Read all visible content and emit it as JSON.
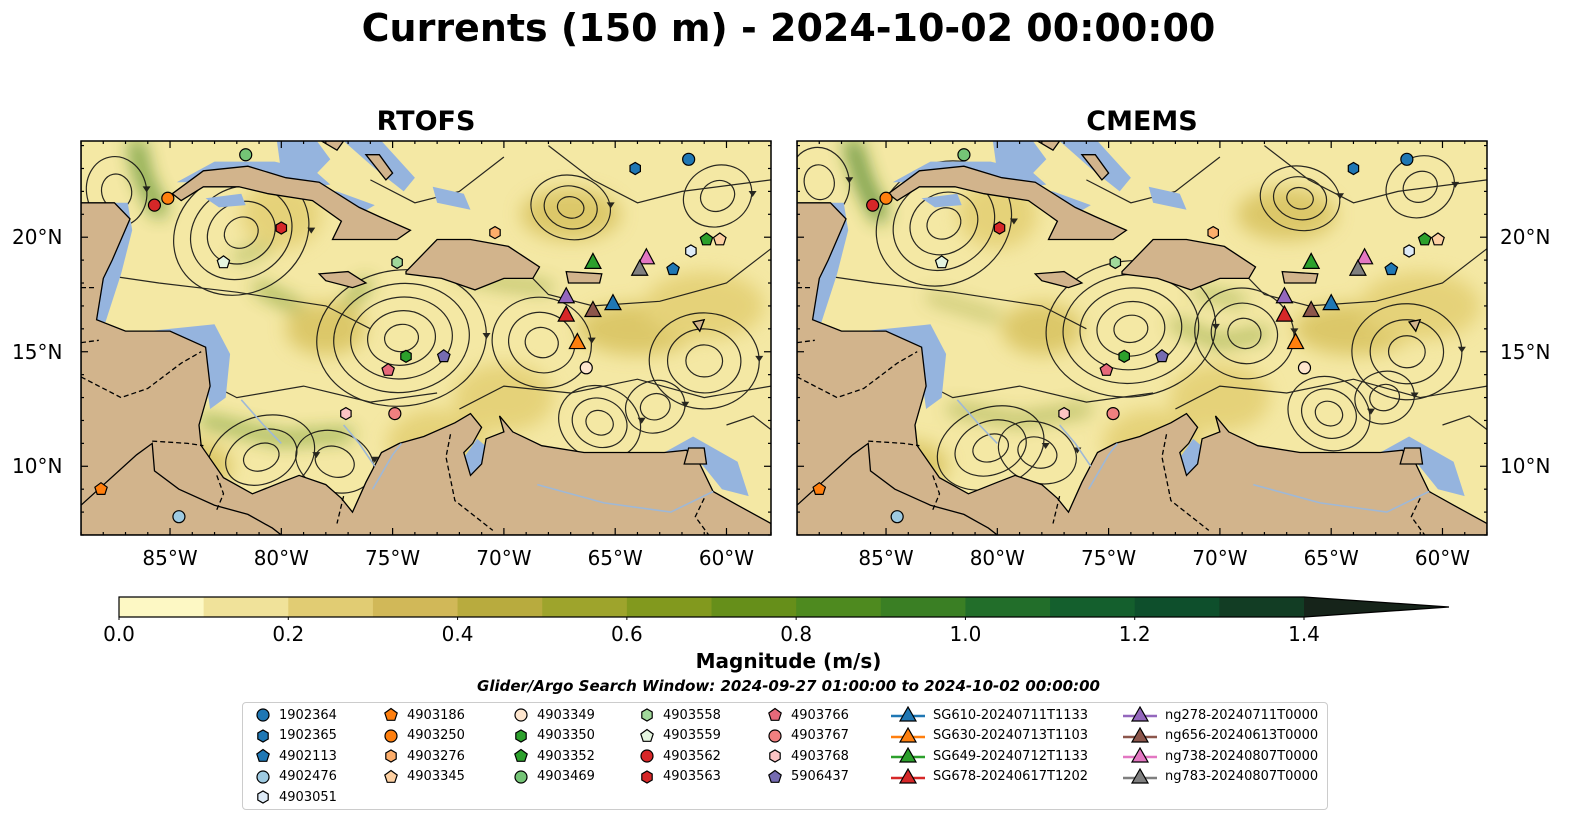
{
  "suptitle": "Currents (150 m) - 2024-10-02 00:00:00",
  "panels": [
    {
      "title": "RTOFS"
    },
    {
      "title": "CMEMS"
    }
  ],
  "axes": {
    "lat_ticks": [
      "20°N",
      "15°N",
      "10°N"
    ],
    "lon_ticks": [
      "85°W",
      "80°W",
      "75°W",
      "70°W",
      "65°W",
      "60°W"
    ]
  },
  "colorbar": {
    "label": "Magnitude (m/s)",
    "ticks": [
      "0.0",
      "0.2",
      "0.4",
      "0.6",
      "0.8",
      "1.0",
      "1.2",
      "1.4"
    ],
    "colors": [
      "#fdf8c4",
      "#f0e29a",
      "#e1cc73",
      "#d1b858",
      "#b8ab3e",
      "#9ea42c",
      "#82991e",
      "#668f1a",
      "#4e8a1f",
      "#3a7f24",
      "#226e2a",
      "#145f2d",
      "#0e4f2c",
      "#123d24",
      "#17301c",
      "#16241a"
    ]
  },
  "search_window": "Glider/Argo Search Window: 2024-09-27 01:00:00 to 2024-10-02 00:00:00",
  "chart_data": {
    "type": "scatter",
    "title": "Currents (150 m) - 2024-10-02 00:00:00",
    "panels": [
      "RTOFS",
      "CMEMS"
    ],
    "xlim": [
      -89,
      -58
    ],
    "ylim": [
      7,
      24.2
    ],
    "colorbar": {
      "label": "Magnitude (m/s)",
      "range": [
        0,
        1.5
      ]
    },
    "series": [
      {
        "name": "1902364",
        "marker": "circle",
        "color": "#1f77b4",
        "points": [
          [
            -61.7,
            23.4
          ]
        ]
      },
      {
        "name": "1902365",
        "marker": "hexagon",
        "color": "#1f77b4",
        "points": [
          [
            -64.1,
            23.0
          ]
        ]
      },
      {
        "name": "4902113",
        "marker": "pentagon",
        "color": "#1f77b4",
        "points": [
          [
            -62.4,
            18.6
          ]
        ]
      },
      {
        "name": "4902476",
        "marker": "circle",
        "color": "#9ecae1",
        "points": [
          [
            -84.6,
            7.8
          ]
        ]
      },
      {
        "name": "4903051",
        "marker": "hexagon",
        "color": "#deebf7",
        "points": [
          [
            -61.6,
            19.4
          ]
        ]
      },
      {
        "name": "4903186",
        "marker": "pentagon",
        "color": "#ff7f0e",
        "points": [
          [
            -88.1,
            9.0
          ]
        ]
      },
      {
        "name": "4903250",
        "marker": "circle",
        "color": "#ff7f0e",
        "points": [
          [
            -85.1,
            21.7
          ]
        ]
      },
      {
        "name": "4903276",
        "marker": "hexagon",
        "color": "#fdae6b",
        "points": [
          [
            -70.4,
            20.2
          ]
        ]
      },
      {
        "name": "4903345",
        "marker": "pentagon",
        "color": "#fdd0a2",
        "points": [
          [
            -60.3,
            19.9
          ]
        ]
      },
      {
        "name": "4903349",
        "marker": "circle",
        "color": "#fee6ce",
        "points": [
          [
            -66.3,
            14.3
          ]
        ]
      },
      {
        "name": "4903350",
        "marker": "hexagon",
        "color": "#2ca02c",
        "points": [
          [
            -74.4,
            14.8
          ]
        ]
      },
      {
        "name": "4903352",
        "marker": "pentagon",
        "color": "#2ca02c",
        "points": [
          [
            -60.9,
            19.9
          ]
        ]
      },
      {
        "name": "4903469",
        "marker": "circle",
        "color": "#74c476",
        "points": [
          [
            -81.6,
            23.6
          ]
        ]
      },
      {
        "name": "4903558",
        "marker": "hexagon",
        "color": "#a1d99b",
        "points": [
          [
            -74.8,
            18.9
          ]
        ]
      },
      {
        "name": "4903559",
        "marker": "pentagon",
        "color": "#e5f5e0",
        "points": [
          [
            -82.6,
            18.9
          ]
        ]
      },
      {
        "name": "4903562",
        "marker": "circle",
        "color": "#d62728",
        "points": [
          [
            -85.7,
            21.4
          ]
        ]
      },
      {
        "name": "4903563",
        "marker": "hexagon",
        "color": "#d62728",
        "points": [
          [
            -80.0,
            20.4
          ]
        ]
      },
      {
        "name": "4903766",
        "marker": "pentagon",
        "color": "#e7697a",
        "points": [
          [
            -75.2,
            14.2
          ]
        ]
      },
      {
        "name": "4903767",
        "marker": "circle",
        "color": "#f08080",
        "points": [
          [
            -74.9,
            12.3
          ]
        ]
      },
      {
        "name": "4903768",
        "marker": "hexagon",
        "color": "#fbc4c4",
        "points": [
          [
            -77.1,
            12.3
          ]
        ]
      },
      {
        "name": "5906437",
        "marker": "pentagon",
        "color": "#756bb1",
        "points": [
          [
            -72.7,
            14.8
          ]
        ]
      },
      {
        "name": "SG610-20240711T1133",
        "marker": "triangle",
        "color": "#1f77b4",
        "points": [
          [
            -65.1,
            17.1
          ]
        ]
      },
      {
        "name": "SG630-20240713T1103",
        "marker": "triangle",
        "color": "#ff7f0e",
        "points": [
          [
            -66.7,
            15.4
          ]
        ]
      },
      {
        "name": "SG649-20240712T1133",
        "marker": "triangle",
        "color": "#2ca02c",
        "points": [
          [
            -66.0,
            18.9
          ]
        ]
      },
      {
        "name": "SG678-20240617T1202",
        "marker": "triangle",
        "color": "#d62728",
        "points": [
          [
            -67.2,
            16.6
          ]
        ]
      },
      {
        "name": "ng278-20240711T0000",
        "marker": "triangle",
        "color": "#9467bd",
        "points": [
          [
            -67.2,
            17.4
          ]
        ]
      },
      {
        "name": "ng656-20240613T0000",
        "marker": "triangle",
        "color": "#8c564b",
        "points": [
          [
            -66.0,
            16.8
          ]
        ]
      },
      {
        "name": "ng738-20240807T0000",
        "marker": "triangle",
        "color": "#e377c2",
        "points": [
          [
            -63.6,
            19.1
          ]
        ]
      },
      {
        "name": "ng783-20240807T0000",
        "marker": "triangle",
        "color": "#7f7f7f",
        "points": [
          [
            -63.9,
            18.6
          ]
        ]
      }
    ]
  }
}
